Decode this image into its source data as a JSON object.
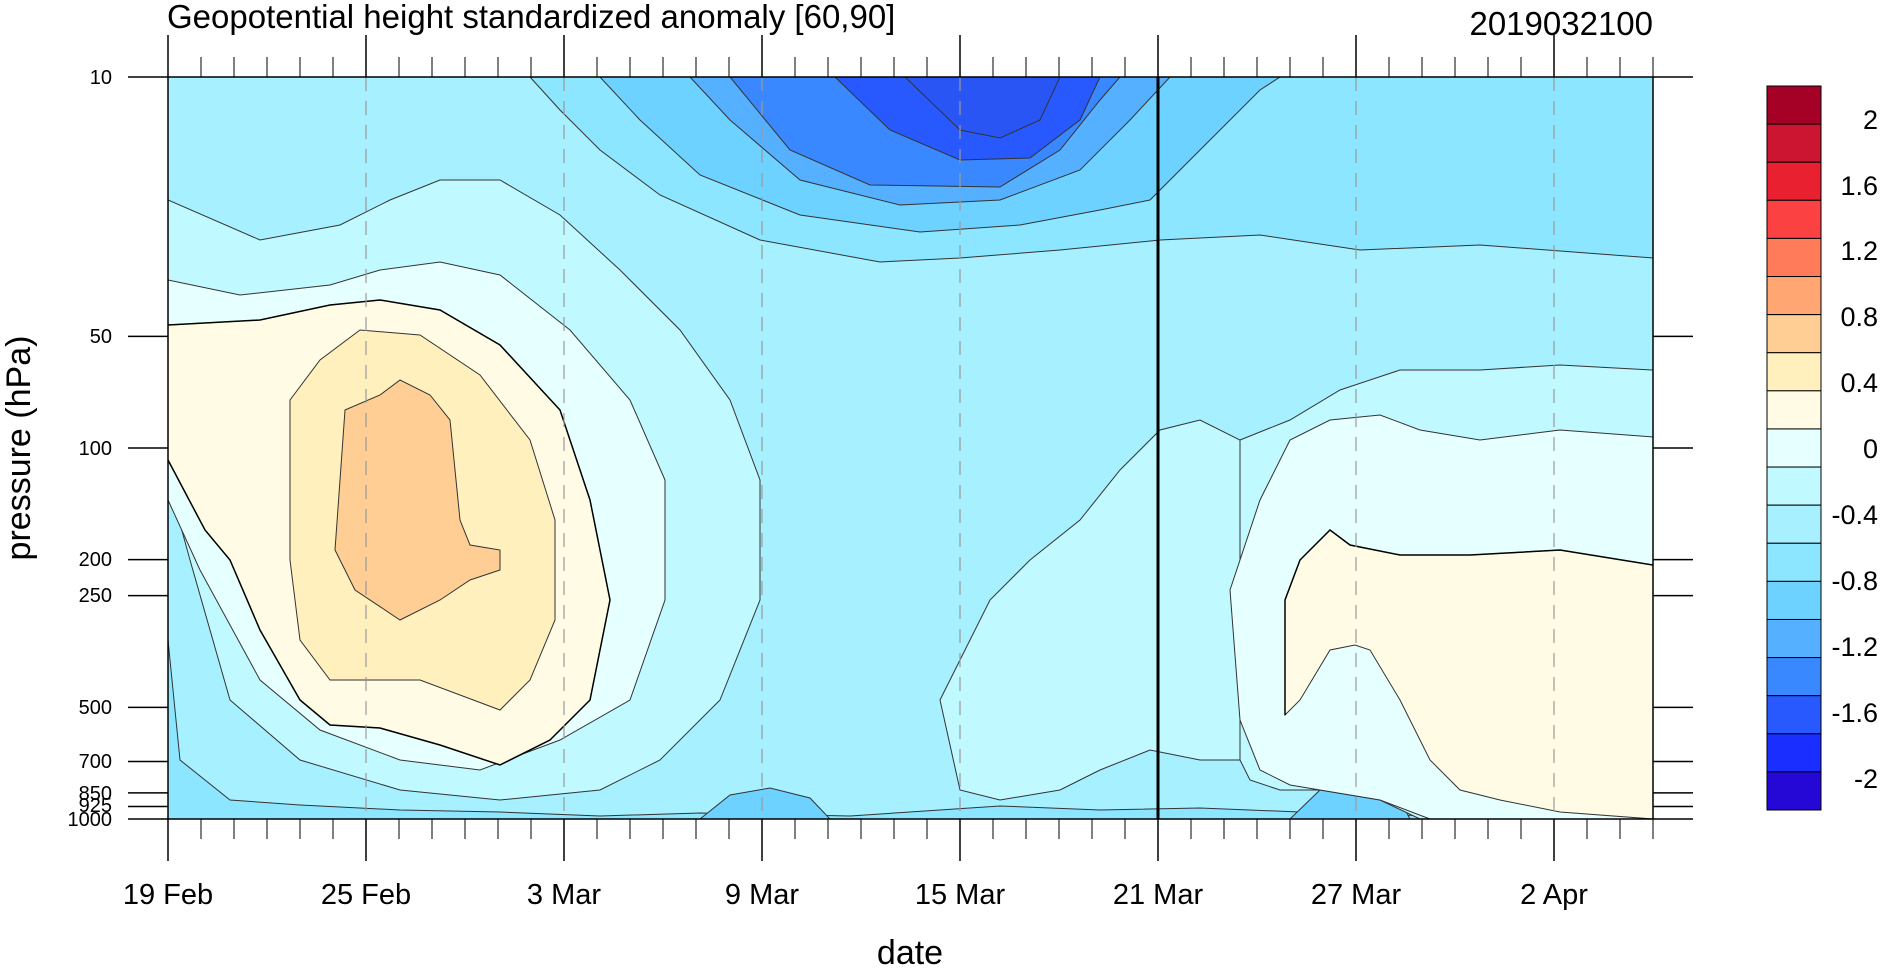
{
  "chart_data": {
    "type": "contour",
    "title": "Geopotential height standardized anomaly [60,90]",
    "subtitle": "2019032100",
    "xlabel": "date",
    "ylabel": "pressure (hPa)",
    "x_ticks": [
      "19 Feb",
      "25 Feb",
      "3 Mar",
      "9 Mar",
      "15 Mar",
      "21 Mar",
      "27 Mar",
      "2 Apr"
    ],
    "y_ticks": [
      {
        "label": "10",
        "value": 10
      },
      {
        "label": "50",
        "value": 50
      },
      {
        "label": "100",
        "value": 100
      },
      {
        "label": "200",
        "value": 200
      },
      {
        "label": "250",
        "value": 250
      },
      {
        "label": "500",
        "value": 500
      },
      {
        "label": "700",
        "value": 700
      },
      {
        "label": "850",
        "value": 850
      },
      {
        "label": "925",
        "value": 925
      },
      {
        "label": "1000",
        "value": 1000
      }
    ],
    "y_scale": "log",
    "y_reversed": true,
    "grid": "dashed vertical lines at date ticks",
    "marker_line_date": "21 Mar",
    "colorbar": {
      "levels": [
        "2",
        "1.6",
        "1.2",
        "0.8",
        "0.4",
        "0",
        "-0.4",
        "-0.8",
        "-1.2",
        "-1.6",
        "-2"
      ],
      "colors": [
        "#a50026",
        "#cc1530",
        "#e8202f",
        "#fb4141",
        "#ff7b5a",
        "#ffa673",
        "#ffce94",
        "#fff0be",
        "#fffbe5",
        "#e6ffff",
        "#c0f9ff",
        "#a6f0ff",
        "#8ce6ff",
        "#6dd2ff",
        "#55b0ff",
        "#3a88ff",
        "#2759ff",
        "#1a2eff",
        "#2608d6"
      ]
    }
  }
}
